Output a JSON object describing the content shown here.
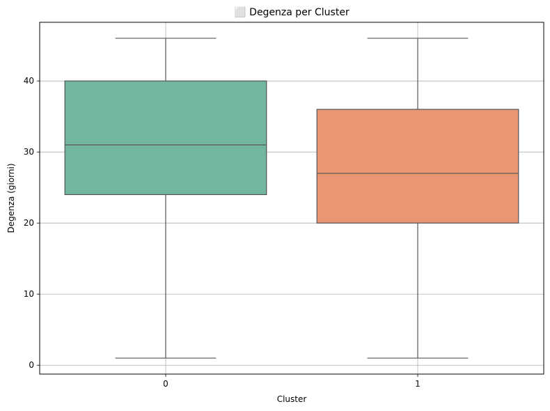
{
  "chart_data": {
    "type": "box",
    "title": "⬜ Degenza per Cluster",
    "xlabel": "Cluster",
    "ylabel": "Degenza (giorni)",
    "categories": [
      "0",
      "1"
    ],
    "series": [
      {
        "category": "0",
        "whisker_low": 1,
        "q1": 24,
        "median": 31,
        "q3": 40,
        "whisker_high": 46,
        "color": "#72b6a1"
      },
      {
        "category": "1",
        "whisker_low": 1,
        "q1": 20,
        "median": 27,
        "q3": 36,
        "whisker_high": 46,
        "color": "#e99675"
      }
    ],
    "y_ticks": [
      0,
      10,
      20,
      30,
      40
    ],
    "ylim": [
      -1.25,
      48.25
    ],
    "grid": true,
    "line_color": "#555555",
    "grid_color": "#b0b0b0"
  }
}
